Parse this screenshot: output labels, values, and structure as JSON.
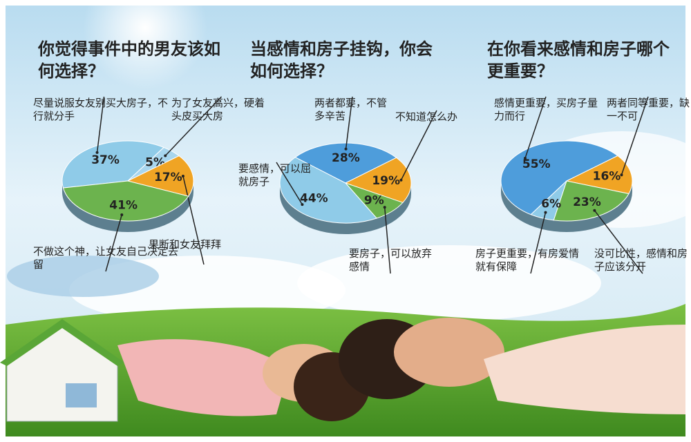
{
  "chart_data": [
    {
      "type": "pie",
      "title": "你觉得事件中的男友该如何选择？",
      "categories": [
        "尽量说服女友别买大房子，不行就分手",
        "为了女友高兴，硬着头皮买大房",
        "果断和女友拜拜",
        "不做这个神，让女友自己决定去留"
      ],
      "values": [
        37,
        5,
        17,
        41
      ],
      "value_labels": [
        "37%",
        "5%",
        "17%",
        "41%"
      ],
      "colors": [
        "#8fcbe8",
        "#a8d6ee",
        "#f0a424",
        "#6cb34e"
      ]
    },
    {
      "type": "pie",
      "title": "当感情和房子挂钩，你会如何选择？",
      "categories": [
        "两者都要，不管多辛苦",
        "不知道怎么办",
        "要房子，可以放弃感情",
        "要感情，可以屈就房子"
      ],
      "values": [
        28,
        19,
        9,
        44
      ],
      "value_labels": [
        "28%",
        "19%",
        "9%",
        "44%"
      ],
      "colors": [
        "#4e9ddb",
        "#f0a424",
        "#6cb34e",
        "#8fcbe8"
      ]
    },
    {
      "type": "pie",
      "title": "在你看来感情和房子哪个更重要？",
      "categories": [
        "感情更重要，买房子量力而行",
        "两者同等重要，缺一不可",
        "没可比性，感情和房子应该分开",
        "房子更重要，有房爱情就有保障"
      ],
      "values": [
        55,
        16,
        23,
        6
      ],
      "value_labels": [
        "55%",
        "16%",
        "23%",
        "6%"
      ],
      "colors": [
        "#4e9ddb",
        "#f0a424",
        "#6cb34e",
        "#8fcbe8"
      ]
    }
  ]
}
